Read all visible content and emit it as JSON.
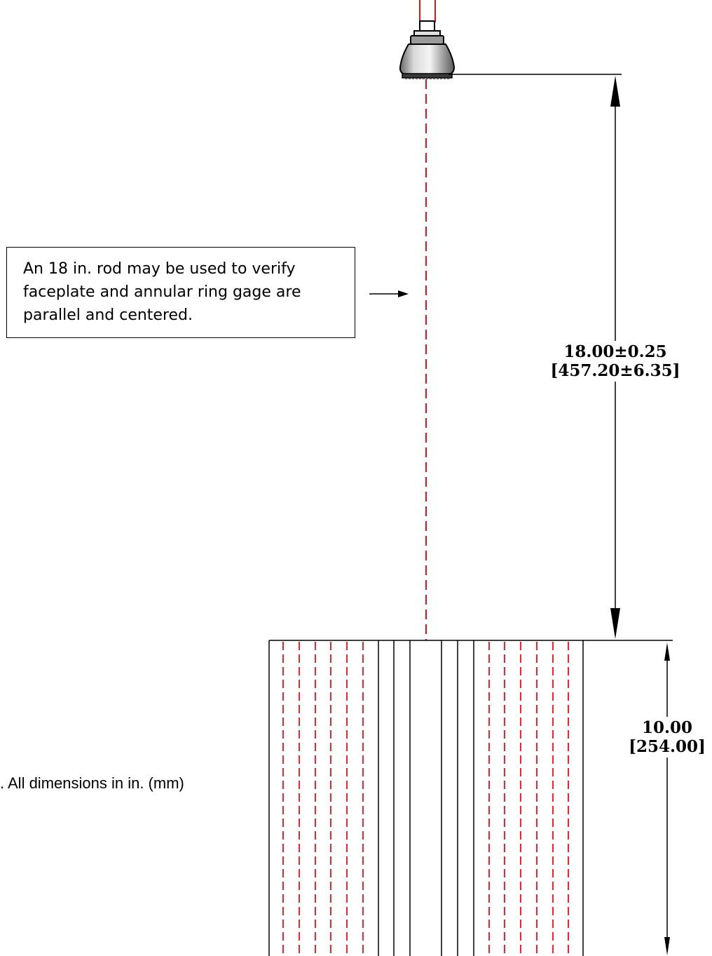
{
  "note": {
    "lines": [
      "An 18 in. rod may be used to verify",
      "faceplate and annular ring gage are",
      "parallel and centered."
    ]
  },
  "dimensions": {
    "height_18": {
      "imperial": "18.00±0.25",
      "metric": "[457.20±6.35]"
    },
    "height_10": {
      "imperial": "10.00",
      "metric": "[254.00]"
    }
  },
  "footnote": ".  All dimensions in in. (mm)",
  "colors": {
    "centerline": "#e8101a",
    "line": "#000000"
  }
}
